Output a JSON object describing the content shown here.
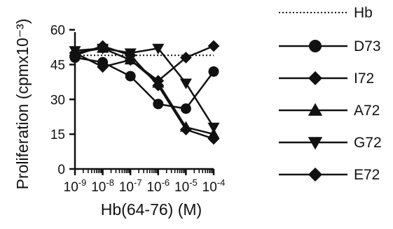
{
  "chart_data": {
    "type": "line",
    "title": "",
    "xlabel": "Hb(64-76) (M)",
    "ylabel": "Proliferation (cpmx10⁻³)",
    "x_scale": "log",
    "x": [
      1e-09,
      1e-08,
      1e-07,
      1e-06,
      1e-05,
      0.0001
    ],
    "x_tick_base": "10",
    "x_tick_exponents": [
      "-9",
      "-8",
      "-7",
      "-6",
      "-5",
      "-4"
    ],
    "y_ticks": [
      0,
      15,
      30,
      45,
      60
    ],
    "ylim": [
      0,
      62
    ],
    "xlim": [
      1e-09,
      0.0001
    ],
    "grid": false,
    "legend_position": "right",
    "reference_line": {
      "name": "Hb",
      "value": 49,
      "style": "dotted"
    },
    "series": [
      {
        "name": "D73",
        "marker": "circle",
        "values": [
          48,
          46,
          40,
          28,
          26,
          42
        ]
      },
      {
        "name": "I72",
        "marker": "diamond",
        "values": [
          50,
          44,
          47,
          38,
          48,
          53
        ]
      },
      {
        "name": "A72",
        "marker": "triangle-up",
        "values": [
          50,
          52,
          47,
          37,
          18,
          15
        ]
      },
      {
        "name": "G72",
        "marker": "triangle-down",
        "values": [
          51,
          52,
          50,
          52,
          37,
          18
        ]
      },
      {
        "name": "E72",
        "marker": "diamond",
        "values": [
          49,
          53,
          49,
          36,
          17,
          13
        ]
      }
    ]
  }
}
